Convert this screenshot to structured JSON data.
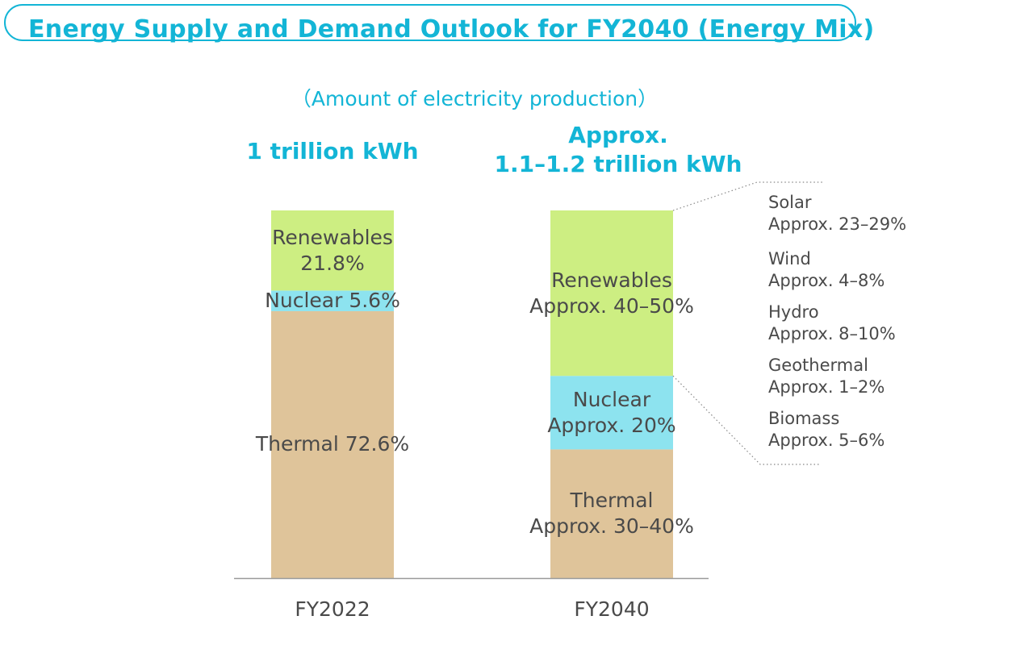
{
  "header": {
    "title": "Energy Supply and Demand Outlook for FY2040 (Energy Mix)",
    "subtitle": "（Amount of electricity production）"
  },
  "colors": {
    "accent": "#13b5d6",
    "renewables": "#cdee82",
    "nuclear": "#8de3ef",
    "thermal": "#dfc49a",
    "axis": "#999999",
    "text": "#4a4a4a"
  },
  "chart_data": {
    "type": "bar",
    "stacked": true,
    "categories": [
      "FY2022",
      "FY2040"
    ],
    "totals": [
      "1 trillion kWh",
      "Approx. 1.1–1.2 trillion kWh"
    ],
    "totals_lines": [
      [
        "1 trillion kWh"
      ],
      [
        "Approx.",
        "1.1–1.2 trillion kWh"
      ]
    ],
    "series": [
      {
        "name": "Thermal",
        "values": [
          72.6,
          35
        ],
        "labels": [
          "Thermal 72.6%",
          "Thermal\nApprox. 30–40%"
        ]
      },
      {
        "name": "Nuclear",
        "values": [
          5.6,
          20
        ],
        "labels": [
          "Nuclear 5.6%",
          "Nuclear\nApprox. 20%"
        ]
      },
      {
        "name": "Renewables",
        "values": [
          21.8,
          45
        ],
        "labels": [
          "Renewables\n21.8%",
          "Renewables\nApprox. 40–50%"
        ]
      }
    ],
    "ylim": [
      0,
      100
    ],
    "renewables_breakdown": [
      {
        "name": "Solar",
        "value": "Approx. 23–29%"
      },
      {
        "name": "Wind",
        "value": "Approx. 4–8%"
      },
      {
        "name": "Hydro",
        "value": "Approx. 8–10%"
      },
      {
        "name": "Geothermal",
        "value": "Approx. 1–2%"
      },
      {
        "name": "Biomass",
        "value": "Approx. 5–6%"
      }
    ]
  }
}
